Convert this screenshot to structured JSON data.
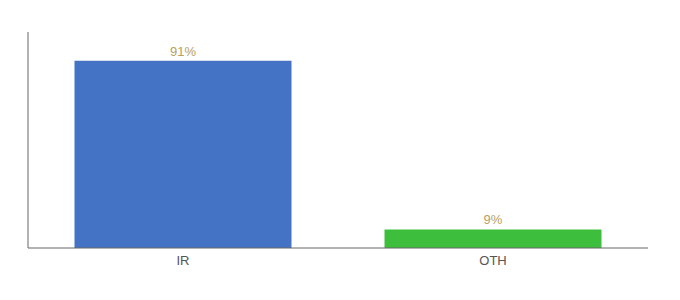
{
  "chart_data": {
    "type": "bar",
    "categories": [
      "IR",
      "OTH"
    ],
    "values": [
      91,
      9
    ],
    "value_labels": [
      "91%",
      "9%"
    ],
    "colors": [
      "#4472c4",
      "#3dbf3d"
    ],
    "ylim": [
      0,
      105
    ],
    "data_labels": true,
    "tick_labels": "x"
  }
}
